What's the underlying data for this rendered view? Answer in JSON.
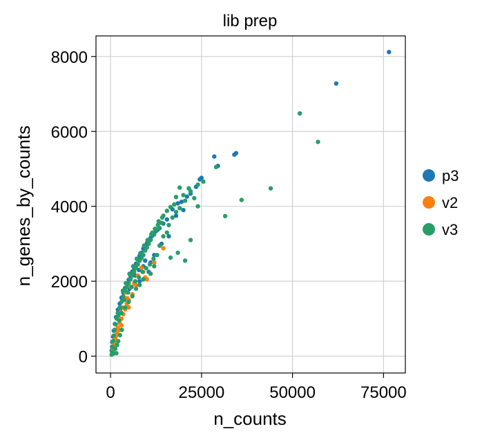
{
  "chart_data": {
    "type": "scatter",
    "title": "lib prep",
    "xlabel": "n_counts",
    "ylabel": "n_genes_by_counts",
    "xlim": [
      -4000,
      81000
    ],
    "ylim": [
      -450,
      8550
    ],
    "xticks": [
      0,
      25000,
      50000,
      75000
    ],
    "yticks": [
      0,
      2000,
      4000,
      6000,
      8000
    ],
    "grid": true,
    "legend_position": "right",
    "series": [
      {
        "name": "p3",
        "color": "#1f77b4",
        "points": [
          [
            76500,
            8120
          ],
          [
            62000,
            7280
          ],
          [
            34500,
            5420
          ],
          [
            34000,
            5380
          ],
          [
            28500,
            5330
          ],
          [
            29500,
            5080
          ],
          [
            25000,
            4760
          ],
          [
            24500,
            4720
          ],
          [
            23500,
            4520
          ],
          [
            22000,
            4340
          ],
          [
            21000,
            4260
          ],
          [
            19500,
            4120
          ],
          [
            18500,
            4080
          ],
          [
            17000,
            3920
          ],
          [
            15500,
            3650
          ],
          [
            14500,
            3540
          ],
          [
            13000,
            3380
          ],
          [
            12500,
            3340
          ],
          [
            11500,
            3220
          ],
          [
            11000,
            3160
          ],
          [
            10000,
            3020
          ],
          [
            9800,
            2950
          ],
          [
            9000,
            2870
          ],
          [
            8500,
            2760
          ],
          [
            8000,
            2680
          ],
          [
            7500,
            2580
          ],
          [
            7000,
            2470
          ],
          [
            6500,
            2360
          ],
          [
            6000,
            2260
          ],
          [
            5500,
            2140
          ],
          [
            5000,
            2040
          ],
          [
            4500,
            1940
          ],
          [
            4000,
            1820
          ],
          [
            3500,
            1700
          ],
          [
            3000,
            1560
          ],
          [
            2500,
            1400
          ],
          [
            2000,
            1240
          ],
          [
            1500,
            1040
          ],
          [
            1200,
            860
          ],
          [
            900,
            680
          ],
          [
            700,
            520
          ],
          [
            500,
            380
          ],
          [
            400,
            250
          ],
          [
            300,
            150
          ],
          [
            11000,
            2500
          ],
          [
            9500,
            2550
          ],
          [
            16000,
            3200
          ],
          [
            18000,
            3750
          ],
          [
            20000,
            3900
          ],
          [
            7800,
            2300
          ],
          [
            6800,
            2150
          ],
          [
            5200,
            1800
          ],
          [
            12000,
            2700
          ],
          [
            9000,
            2400
          ],
          [
            10500,
            2250
          ],
          [
            8000,
            2000
          ],
          [
            14000,
            3000
          ],
          [
            13500,
            2950
          ]
        ]
      },
      {
        "name": "v2",
        "color": "#ff7f0e",
        "points": [
          [
            14500,
            2880
          ],
          [
            12000,
            2500
          ],
          [
            11000,
            2200
          ],
          [
            10000,
            2050
          ],
          [
            8500,
            2360
          ],
          [
            7000,
            1900
          ],
          [
            6000,
            1650
          ],
          [
            5000,
            1500
          ],
          [
            4500,
            1400
          ],
          [
            4000,
            1250
          ],
          [
            3500,
            1120
          ],
          [
            3000,
            1000
          ],
          [
            2500,
            880
          ],
          [
            2000,
            760
          ],
          [
            1800,
            640
          ],
          [
            1500,
            540
          ],
          [
            1200,
            430
          ],
          [
            1000,
            340
          ],
          [
            800,
            250
          ],
          [
            600,
            160
          ],
          [
            3800,
            1550
          ],
          [
            3200,
            1300
          ],
          [
            2800,
            1180
          ],
          [
            2200,
            1020
          ],
          [
            4200,
            1700
          ],
          [
            5500,
            1850
          ],
          [
            6500,
            1950
          ],
          [
            7500,
            2150
          ],
          [
            9000,
            2250
          ],
          [
            9500,
            2100
          ],
          [
            3000,
            820
          ],
          [
            2400,
            700
          ],
          [
            1700,
            580
          ],
          [
            1300,
            480
          ],
          [
            5000,
            1300
          ],
          [
            4600,
            1550
          ]
        ]
      },
      {
        "name": "v3",
        "color": "#279e68",
        "points": [
          [
            52000,
            6480
          ],
          [
            57000,
            5720
          ],
          [
            44000,
            4480
          ],
          [
            36000,
            4170
          ],
          [
            31500,
            3740
          ],
          [
            29000,
            5050
          ],
          [
            25500,
            4660
          ],
          [
            24000,
            4580
          ],
          [
            22000,
            3100
          ],
          [
            20500,
            2550
          ],
          [
            18500,
            2760
          ],
          [
            16500,
            2630
          ],
          [
            23000,
            4220
          ],
          [
            24000,
            4000
          ],
          [
            21500,
            4480
          ],
          [
            20000,
            4300
          ],
          [
            19000,
            4500
          ],
          [
            18000,
            4250
          ],
          [
            17500,
            4050
          ],
          [
            16500,
            3980
          ],
          [
            15500,
            3880
          ],
          [
            14500,
            3750
          ],
          [
            14000,
            3560
          ],
          [
            13500,
            3420
          ],
          [
            13000,
            3500
          ],
          [
            12500,
            3380
          ],
          [
            12000,
            3250
          ],
          [
            11500,
            3300
          ],
          [
            11000,
            3100
          ],
          [
            10500,
            3000
          ],
          [
            10000,
            2900
          ],
          [
            9500,
            2820
          ],
          [
            9000,
            2700
          ],
          [
            8500,
            2620
          ],
          [
            8000,
            2550
          ],
          [
            7500,
            2450
          ],
          [
            7000,
            2350
          ],
          [
            6500,
            2250
          ],
          [
            6000,
            2150
          ],
          [
            5500,
            2050
          ],
          [
            5000,
            1950
          ],
          [
            4500,
            1850
          ],
          [
            4000,
            1750
          ],
          [
            3500,
            1600
          ],
          [
            3000,
            1450
          ],
          [
            2500,
            1300
          ],
          [
            2000,
            1150
          ],
          [
            1700,
            1000
          ],
          [
            1400,
            850
          ],
          [
            1100,
            700
          ],
          [
            900,
            550
          ],
          [
            700,
            400
          ],
          [
            500,
            250
          ],
          [
            400,
            120
          ],
          [
            300,
            40
          ],
          [
            600,
            60
          ],
          [
            1000,
            80
          ],
          [
            1600,
            80
          ],
          [
            13500,
            2950
          ],
          [
            12800,
            2700
          ],
          [
            11800,
            2600
          ],
          [
            10800,
            2450
          ],
          [
            9800,
            2350
          ],
          [
            8800,
            2250
          ],
          [
            7800,
            2100
          ],
          [
            6800,
            2000
          ],
          [
            5800,
            1850
          ],
          [
            4800,
            1700
          ],
          [
            3800,
            1500
          ],
          [
            2800,
            1280
          ],
          [
            2200,
            1100
          ],
          [
            11000,
            2200
          ],
          [
            12000,
            2400
          ],
          [
            9000,
            2050
          ],
          [
            8000,
            1900
          ],
          [
            7000,
            1800
          ],
          [
            6000,
            1600
          ],
          [
            5000,
            1450
          ],
          [
            4000,
            1300
          ],
          [
            3000,
            1150
          ],
          [
            2400,
            950
          ],
          [
            14500,
            3200
          ],
          [
            15500,
            3300
          ],
          [
            16000,
            3500
          ],
          [
            17000,
            3700
          ],
          [
            18000,
            3850
          ],
          [
            19000,
            3950
          ],
          [
            20500,
            4150
          ],
          [
            22000,
            4400
          ],
          [
            6200,
            2400
          ],
          [
            5200,
            2200
          ],
          [
            4200,
            1950
          ],
          [
            3400,
            1750
          ],
          [
            7200,
            2600
          ],
          [
            8200,
            2750
          ],
          [
            9200,
            2950
          ],
          [
            10200,
            3100
          ],
          [
            11200,
            3250
          ],
          [
            12200,
            3400
          ],
          [
            13200,
            3600
          ],
          [
            14200,
            3700
          ],
          [
            3100,
            700
          ],
          [
            2600,
            560
          ],
          [
            2100,
            400
          ],
          [
            1800,
            300
          ],
          [
            1300,
            200
          ]
        ]
      }
    ]
  }
}
